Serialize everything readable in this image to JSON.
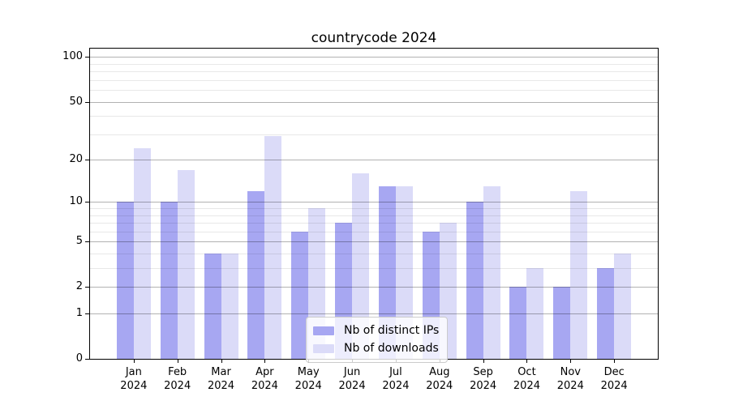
{
  "chart_data": {
    "type": "bar",
    "title": "countrycode 2024",
    "categories": [
      "Jan",
      "Feb",
      "Mar",
      "Apr",
      "May",
      "Jun",
      "Jul",
      "Aug",
      "Sep",
      "Oct",
      "Nov",
      "Dec"
    ],
    "x_year_label": "2024",
    "series": [
      {
        "name": "Nb of distinct IPs",
        "color": "#a7a7f2",
        "values": [
          10,
          10,
          4,
          12,
          6,
          7,
          13,
          6,
          10,
          2,
          2,
          3
        ]
      },
      {
        "name": "Nb of downloads",
        "color": "#dbdbf8",
        "values": [
          24,
          17,
          4,
          29,
          9,
          16,
          13,
          7,
          13,
          3,
          12,
          4
        ]
      }
    ],
    "xlabel": "",
    "ylabel": "",
    "yscale": "log1p",
    "ylim": [
      0,
      114
    ],
    "yticks": [
      0,
      1,
      2,
      5,
      10,
      20,
      50,
      100
    ],
    "y_tick_labels": [
      "0",
      "1",
      "2",
      "5",
      "10",
      "20",
      "50",
      "100"
    ],
    "minor_yticks": [
      3,
      4,
      6,
      7,
      8,
      9,
      30,
      40,
      60,
      70,
      80,
      90
    ],
    "grid": true,
    "grid_above_bars": true,
    "legend_position": "lower-center-inside",
    "colors": {
      "background": "#ffffff",
      "spine": "#000000",
      "grid_major": "#b3b3b3",
      "grid_minor": "#e9e9e9",
      "text": "#000000"
    }
  }
}
